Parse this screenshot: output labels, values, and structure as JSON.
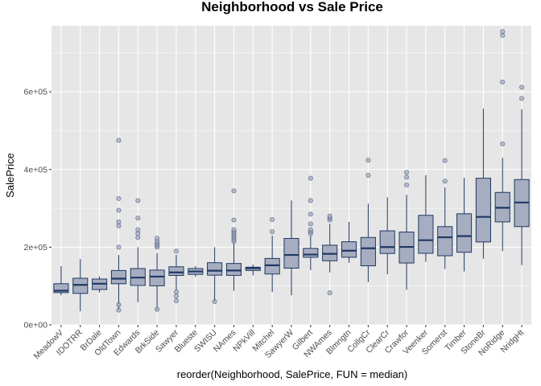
{
  "chart_data": {
    "type": "boxplot",
    "title": "Neighborhood vs Sale Price",
    "xlabel": "reorder(Neighborhood, SalePrice, FUN = median)",
    "ylabel": "SalePrice",
    "ylim": [
      0,
      770000
    ],
    "y_ticks": [
      0,
      200000,
      400000,
      600000
    ],
    "y_tick_labels": [
      "0e+00",
      "2e+05",
      "4e+05",
      "6e+05"
    ],
    "colors": {
      "panel": "#e6e6e6",
      "grid": "#ffffff",
      "box_fill": "#a6adc0",
      "box_line": "#1f3864",
      "outlier": "#1f3864"
    },
    "categories": [
      "MeadowV",
      "IDOTRR",
      "BrDale",
      "OldTown",
      "Edwards",
      "BrkSide",
      "Sawyer",
      "Blueste",
      "SWISU",
      "NAmes",
      "NPkVill",
      "Mitchel",
      "SawyerW",
      "Gilbert",
      "NWAmes",
      "Blmngtn",
      "CollgCr",
      "ClearCr",
      "Crawfor",
      "Veenker",
      "Somerst",
      "Timber",
      "StoneBr",
      "NoRidge",
      "NridgHt"
    ],
    "boxes": [
      {
        "name": "MeadowV",
        "min": 76000,
        "q1": 83000,
        "median": 88000,
        "q3": 106000,
        "max": 151000,
        "outliers": []
      },
      {
        "name": "IDOTRR",
        "min": 34900,
        "q1": 81000,
        "median": 103000,
        "q3": 120000,
        "max": 169500,
        "outliers": []
      },
      {
        "name": "BrDale",
        "min": 83000,
        "q1": 91000,
        "median": 106000,
        "q3": 118000,
        "max": 125000,
        "outliers": []
      },
      {
        "name": "OldTown",
        "min": 37900,
        "q1": 105900,
        "median": 119000,
        "q3": 140000,
        "max": 180000,
        "outliers": [
          37900,
          52000,
          200000,
          255000,
          265000,
          295000,
          325000,
          475000
        ]
      },
      {
        "name": "Edwards",
        "min": 58500,
        "q1": 101500,
        "median": 121750,
        "q3": 145000,
        "max": 200000,
        "outliers": [
          225000,
          235000,
          245000,
          275000,
          320000
        ]
      },
      {
        "name": "BrkSide",
        "min": 39300,
        "q1": 100500,
        "median": 124300,
        "q3": 141000,
        "max": 185000,
        "outliers": [
          40000,
          200000,
          205000,
          210000,
          215000,
          223000
        ]
      },
      {
        "name": "Sawyer",
        "min": 90000,
        "q1": 127250,
        "median": 135000,
        "q3": 149500,
        "max": 180000,
        "outliers": [
          62000,
          74000,
          85000,
          190000
        ]
      },
      {
        "name": "Blueste",
        "min": 124000,
        "q1": 130000,
        "median": 137500,
        "q3": 145000,
        "max": 151000,
        "outliers": []
      },
      {
        "name": "SWISU",
        "min": 60000,
        "q1": 128000,
        "median": 139500,
        "q3": 160000,
        "max": 200000,
        "outliers": [
          60000
        ]
      },
      {
        "name": "NAmes",
        "min": 87500,
        "q1": 127500,
        "median": 140000,
        "q3": 158000,
        "max": 210000,
        "outliers": [
          215000,
          220000,
          225000,
          230000,
          235000,
          240000,
          245000,
          270000,
          345000
        ]
      },
      {
        "name": "NPkVill",
        "min": 127500,
        "q1": 140000,
        "median": 146000,
        "q3": 148500,
        "max": 155000,
        "outliers": []
      },
      {
        "name": "Mitchel",
        "min": 84500,
        "q1": 131000,
        "median": 153500,
        "q3": 171000,
        "max": 230000,
        "outliers": [
          240000,
          271000
        ]
      },
      {
        "name": "SawyerW",
        "min": 76000,
        "q1": 146000,
        "median": 179900,
        "q3": 222500,
        "max": 320000,
        "outliers": []
      },
      {
        "name": "Gilbert",
        "min": 141000,
        "q1": 174000,
        "median": 181000,
        "q3": 197000,
        "max": 230000,
        "outliers": [
          235000,
          240000,
          245000,
          260000,
          285000,
          320000,
          377500
        ]
      },
      {
        "name": "NWAmes",
        "min": 135000,
        "q1": 165000,
        "median": 182900,
        "q3": 205000,
        "max": 260000,
        "outliers": [
          82500,
          270000,
          275000,
          280000
        ]
      },
      {
        "name": "Blmngtn",
        "min": 159900,
        "q1": 174000,
        "median": 191000,
        "q3": 214000,
        "max": 265000,
        "outliers": []
      },
      {
        "name": "CollgCr",
        "min": 110000,
        "q1": 152000,
        "median": 197200,
        "q3": 225000,
        "max": 312000,
        "outliers": [
          385000,
          424000
        ]
      },
      {
        "name": "ClearCr",
        "min": 130000,
        "q1": 183750,
        "median": 200250,
        "q3": 242000,
        "max": 328000,
        "outliers": []
      },
      {
        "name": "Crawfor",
        "min": 90350,
        "q1": 159250,
        "median": 200624,
        "q3": 239000,
        "max": 335000,
        "outliers": [
          360000,
          380000,
          392500
        ]
      },
      {
        "name": "Veenker",
        "min": 162500,
        "q1": 184250,
        "median": 218000,
        "q3": 282000,
        "max": 385000,
        "outliers": []
      },
      {
        "name": "Somerst",
        "min": 144000,
        "q1": 177975,
        "median": 225500,
        "q3": 252920,
        "max": 354000,
        "outliers": [
          370000,
          423000
        ]
      },
      {
        "name": "Timber",
        "min": 137500,
        "q1": 186900,
        "median": 228475,
        "q3": 286000,
        "max": 378500,
        "outliers": []
      },
      {
        "name": "StoneBr",
        "min": 170000,
        "q1": 213500,
        "median": 278000,
        "q3": 377500,
        "max": 556581,
        "outliers": []
      },
      {
        "name": "NoRidge",
        "min": 190000,
        "q1": 265000,
        "median": 301500,
        "q3": 341000,
        "max": 430000,
        "outliers": [
          466000,
          625000,
          745000,
          755000
        ]
      },
      {
        "name": "NridgHt",
        "min": 154000,
        "q1": 253000,
        "median": 315000,
        "q3": 374000,
        "max": 555000,
        "outliers": [
          582933,
          611657
        ]
      }
    ]
  }
}
